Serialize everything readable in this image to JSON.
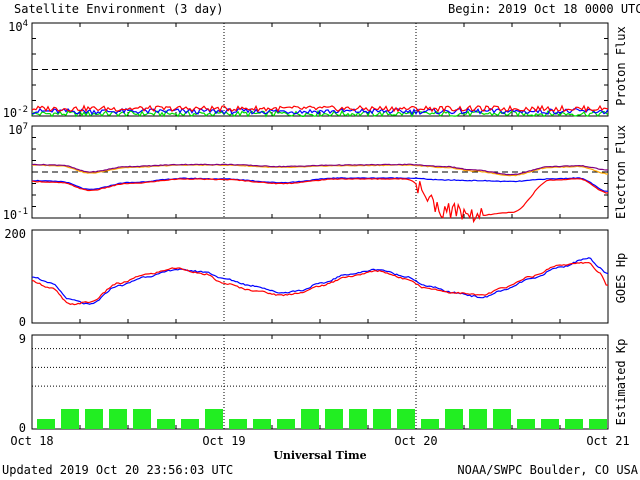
{
  "header": {
    "title": "Satellite Environment (3 day)",
    "begin_label": "Begin:",
    "begin_value": "2019 Oct 18 0000 UTC"
  },
  "footer": {
    "updated": "Updated 2019 Oct 20 23:56:03 UTC",
    "credit": "NOAA/SWPC Boulder, CO USA"
  },
  "x_axis": {
    "label": "Universal Time",
    "ticks": [
      "Oct 18",
      "Oct 19",
      "Oct 20",
      "Oct 21"
    ],
    "range_days": [
      0,
      3
    ]
  },
  "colors": {
    "red": "#ff0000",
    "blue": "#0000ff",
    "green": "#00e000",
    "orange": "#ffa500",
    "purple": "#800080",
    "kp_bar": "#22ee22"
  },
  "chart_data": [
    {
      "type": "line",
      "panel": "proton",
      "ylabel": "Proton Flux",
      "yscale": "log",
      "ylim": [
        0.01,
        10000
      ],
      "y_tick_labels": [
        {
          "base": "10",
          "exp": "4"
        },
        {
          "base": "10",
          "exp": "-2"
        }
      ],
      "threshold": 10,
      "grid": "vertical dotted at day boundaries",
      "series": [
        {
          "color": "#ff0000",
          "approx_level": 0.03
        },
        {
          "color": "#0000ff",
          "approx_level": 0.02
        },
        {
          "color": "#00e000",
          "approx_level": 0.014
        }
      ]
    },
    {
      "type": "line",
      "panel": "electron",
      "ylabel": "Electron Flux",
      "yscale": "log",
      "ylim": [
        0.1,
        10000000
      ],
      "y_tick_labels": [
        {
          "base": "10",
          "exp": "7"
        },
        {
          "base": "10",
          "exp": "-1"
        }
      ],
      "threshold": 1000,
      "x": [
        0,
        0.15,
        0.3,
        0.5,
        0.8,
        1.0,
        1.3,
        1.6,
        1.95,
        2.15,
        2.3,
        2.5,
        2.7,
        2.85,
        3.0
      ],
      "series": [
        {
          "color": "#ffa500",
          "values": [
            4000,
            3500,
            800,
            2500,
            4000,
            4000,
            2500,
            3500,
            4000,
            2500,
            1200,
            500,
            2500,
            3000,
            700
          ]
        },
        {
          "color": "#800080",
          "values": [
            4500,
            4000,
            1000,
            3000,
            4500,
            4500,
            3000,
            4000,
            4500,
            3000,
            1500,
            600,
            3000,
            3500,
            1500
          ]
        },
        {
          "color": "#0000ff",
          "values": [
            180,
            150,
            30,
            120,
            280,
            250,
            120,
            300,
            300,
            200,
            180,
            150,
            250,
            300,
            20
          ]
        },
        {
          "color": "#ff0000",
          "values": [
            150,
            120,
            25,
            100,
            250,
            220,
            100,
            250,
            250,
            0.5,
            0.15,
            0.3,
            200,
            250,
            15
          ]
        }
      ]
    },
    {
      "type": "line",
      "panel": "goes_hp",
      "ylabel": "GOES Hp",
      "ylim": [
        0,
        200
      ],
      "y_tick_labels": [
        "200",
        "0"
      ],
      "x": [
        0,
        0.1,
        0.2,
        0.3,
        0.45,
        0.6,
        0.75,
        0.9,
        1.0,
        1.15,
        1.3,
        1.4,
        1.5,
        1.65,
        1.8,
        1.95,
        2.05,
        2.2,
        2.35,
        2.45,
        2.6,
        2.75,
        2.9,
        2.95,
        3.0
      ],
      "series": [
        {
          "color": "#0000ff",
          "values": [
            100,
            85,
            50,
            40,
            80,
            100,
            115,
            110,
            95,
            80,
            65,
            70,
            85,
            105,
            115,
            100,
            80,
            65,
            55,
            70,
            95,
            120,
            140,
            120,
            105
          ]
        },
        {
          "color": "#ff0000",
          "values": [
            90,
            75,
            40,
            45,
            85,
            105,
            118,
            105,
            85,
            70,
            60,
            65,
            80,
            100,
            112,
            95,
            75,
            65,
            60,
            75,
            100,
            125,
            130,
            110,
            80
          ]
        }
      ]
    },
    {
      "type": "bar",
      "panel": "kp",
      "ylabel": "Estimated Kp",
      "ylim": [
        0,
        9
      ],
      "y_tick_labels": [
        "9",
        "0"
      ],
      "bar_width_hours": 3,
      "values": [
        1,
        2,
        2,
        2,
        2,
        1,
        1,
        2,
        1,
        1,
        1,
        2,
        2,
        2,
        2,
        2,
        1,
        2,
        2,
        2,
        1,
        1,
        1,
        1
      ]
    }
  ]
}
